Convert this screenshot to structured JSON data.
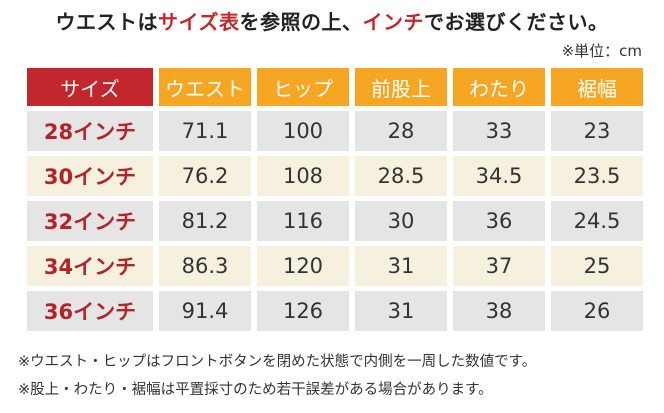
{
  "header": {
    "title": [
      {
        "text": "ウエストは",
        "color": "#222222"
      },
      {
        "text": "サイズ表",
        "color": "#c1272d"
      },
      {
        "text": "を参照の上、",
        "color": "#222222"
      },
      {
        "text": "インチ",
        "color": "#c1272d"
      },
      {
        "text": "でお選びください。",
        "color": "#222222"
      }
    ],
    "unit": "※単位：cm"
  },
  "table": {
    "columns": [
      "サイズ",
      "ウエスト",
      "ヒップ",
      "前股上",
      "わたり",
      "裾幅"
    ],
    "rows": [
      [
        "28インチ",
        "71.1",
        "100",
        "28",
        "33",
        "23"
      ],
      [
        "30インチ",
        "76.2",
        "108",
        "28.5",
        "34.5",
        "23.5"
      ],
      [
        "32インチ",
        "81.2",
        "116",
        "30",
        "36",
        "24.5"
      ],
      [
        "34インチ",
        "86.3",
        "120",
        "31",
        "37",
        "25"
      ],
      [
        "36インチ",
        "91.4",
        "126",
        "31",
        "38",
        "26"
      ]
    ]
  },
  "notes": [
    "※ウエスト・ヒップはフロントボタンを閉めた状態で内側を一周した数値です。",
    "※股上・わたり・裾幅は平置採寸のため若干誤差がある場合があります。"
  ]
}
